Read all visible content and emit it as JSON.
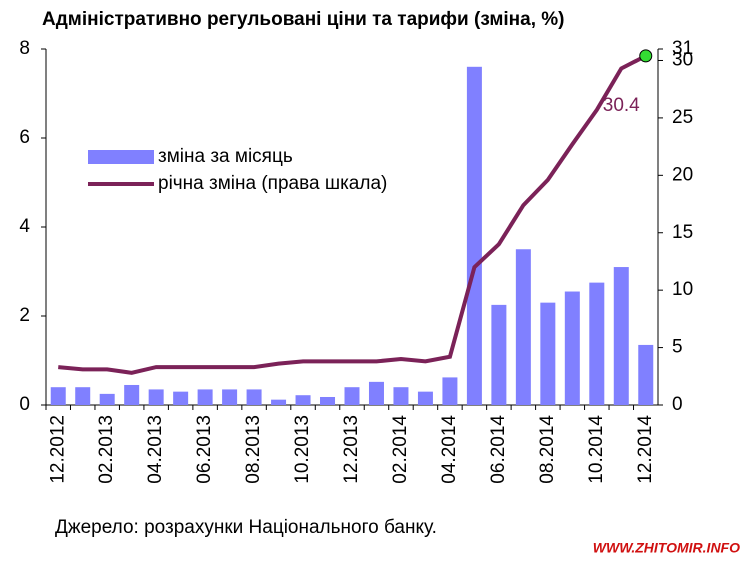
{
  "chart_data": {
    "type": "bar-line",
    "title": "Адміністративно регульовані ціни та тарифи (зміна, %)",
    "source": "Джерело: розрахунки Національного банку.",
    "watermark": "WWW.ZHITOMIR.INFO",
    "categories": [
      "12.2012",
      null,
      "02.2013",
      null,
      "04.2013",
      null,
      "06.2013",
      null,
      "08.2013",
      null,
      "10.2013",
      null,
      "12.2013",
      null,
      "02.2014",
      null,
      "04.2014",
      null,
      "06.2014",
      null,
      "08.2014",
      null,
      "10.2014",
      null,
      "12.2014"
    ],
    "series": [
      {
        "name": "зміна за місяць",
        "color": "#8080ff",
        "kind": "bar",
        "values": [
          0.4,
          0.4,
          0.25,
          0.45,
          0.35,
          0.3,
          0.35,
          0.35,
          0.35,
          0.12,
          0.22,
          0.18,
          0.4,
          0.52,
          0.4,
          0.3,
          0.62,
          7.6,
          2.25,
          3.5,
          2.3,
          2.55,
          2.75,
          3.1,
          1.35
        ]
      },
      {
        "name": "річна зміна (права шкала)",
        "color": "#7b2258",
        "kind": "line",
        "axis": "y2",
        "values": [
          3.3,
          3.1,
          3.1,
          2.8,
          3.3,
          3.3,
          3.3,
          3.3,
          3.3,
          3.6,
          3.8,
          3.8,
          3.8,
          3.8,
          4.0,
          3.8,
          4.2,
          12.0,
          14.0,
          17.4,
          19.6,
          22.7,
          25.7,
          29.3,
          30.4
        ]
      }
    ],
    "ylim": [
      0,
      8
    ],
    "yticks": [
      0,
      2,
      4,
      6,
      8
    ],
    "y2lim": [
      0,
      31
    ],
    "y2ticks": [
      0,
      5,
      10,
      15,
      20,
      25,
      30,
      31
    ],
    "highlight_color": "#33dd33"
  }
}
